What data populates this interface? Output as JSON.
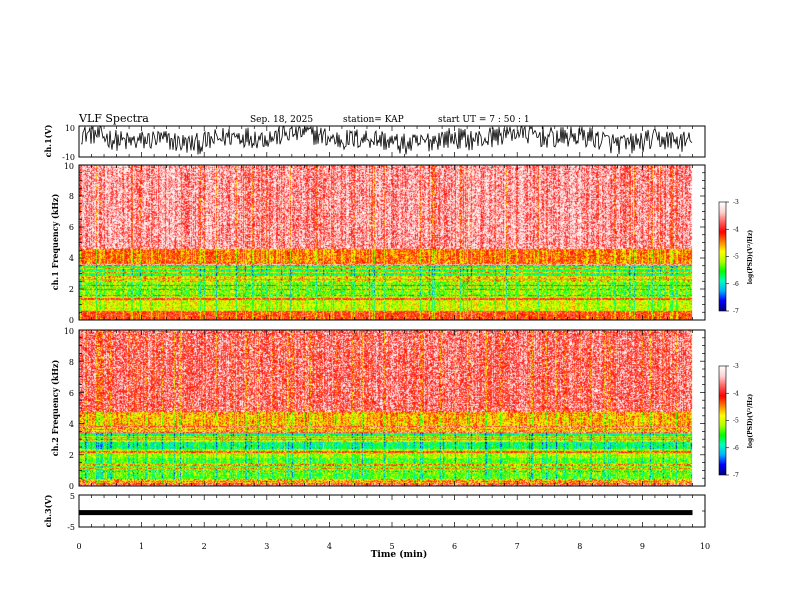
{
  "header": {
    "title": "VLF Spectra",
    "date": "Sep. 18, 2025",
    "station": "station= KAP",
    "start": "start  UT  =   7  : 50 : 1"
  },
  "chart_data": [
    {
      "type": "line",
      "name": "ch1-waveform",
      "ylabel": "ch.1(V)",
      "ylim": [
        -10,
        10
      ],
      "yticks": [
        "10",
        "-10"
      ],
      "xlim": [
        0,
        10
      ],
      "data_end_min": 9.8,
      "description_values": "noisy voltage oscillating mostly between -5 and 8 V"
    },
    {
      "type": "heatmap",
      "name": "ch1-spectrogram",
      "ylabel": "ch.1 Frequency  (kHz)",
      "ylim": [
        0,
        10
      ],
      "yticks": [
        "0",
        "2",
        "4",
        "6",
        "8",
        "10"
      ],
      "xlim": [
        0,
        10
      ],
      "data_end_min": 9.8,
      "bands": [
        {
          "from_khz": 0.0,
          "to_khz": 0.6,
          "level": -4.2
        },
        {
          "from_khz": 0.6,
          "to_khz": 1.5,
          "level": -5.0
        },
        {
          "from_khz": 1.5,
          "to_khz": 2.5,
          "level": -5.3
        },
        {
          "from_khz": 2.5,
          "to_khz": 3.5,
          "level": -5.6
        },
        {
          "from_khz": 3.5,
          "to_khz": 4.6,
          "level": -4.4
        },
        {
          "from_khz": 4.6,
          "to_khz": 10.0,
          "level": -3.6
        }
      ]
    },
    {
      "type": "heatmap",
      "name": "ch2-spectrogram",
      "ylabel": "ch.2 Frequency  (kHz)",
      "ylim": [
        0,
        10
      ],
      "yticks": [
        "0",
        "2",
        "4",
        "6",
        "8",
        "10"
      ],
      "xlim": [
        0,
        10
      ],
      "data_end_min": 9.8,
      "bands": [
        {
          "from_khz": 0.0,
          "to_khz": 0.5,
          "level": -4.6
        },
        {
          "from_khz": 0.5,
          "to_khz": 1.8,
          "level": -5.4
        },
        {
          "from_khz": 1.8,
          "to_khz": 2.4,
          "level": -5.1
        },
        {
          "from_khz": 2.4,
          "to_khz": 3.4,
          "level": -5.7
        },
        {
          "from_khz": 3.4,
          "to_khz": 4.8,
          "level": -4.6
        },
        {
          "from_khz": 4.8,
          "to_khz": 10.0,
          "level": -3.8
        }
      ]
    },
    {
      "type": "line",
      "name": "ch3-waveform",
      "ylabel": "ch.3(V)",
      "ylim": [
        -5,
        5
      ],
      "yticks": [
        "5",
        "-5"
      ],
      "xlim": [
        0,
        10
      ],
      "xticks": [
        "0",
        "1",
        "2",
        "3",
        "4",
        "5",
        "6",
        "7",
        "8",
        "9",
        "10"
      ],
      "xlabel": "Time  (min)",
      "level_v": -0.5,
      "data_end_min": 9.8
    }
  ],
  "colorbar": {
    "label": "log(PSD)(V²/Hz)",
    "range": [
      -7,
      -3
    ],
    "ticks": [
      "-3",
      "-4",
      "-5",
      "-6",
      "-7"
    ],
    "stops": [
      "#000080",
      "#0000ff",
      "#00b0ff",
      "#00ffc0",
      "#00ff00",
      "#b0ff00",
      "#ffff00",
      "#ff8000",
      "#ff0000",
      "#ff6060",
      "#ffd0d0",
      "#ffffff"
    ]
  }
}
